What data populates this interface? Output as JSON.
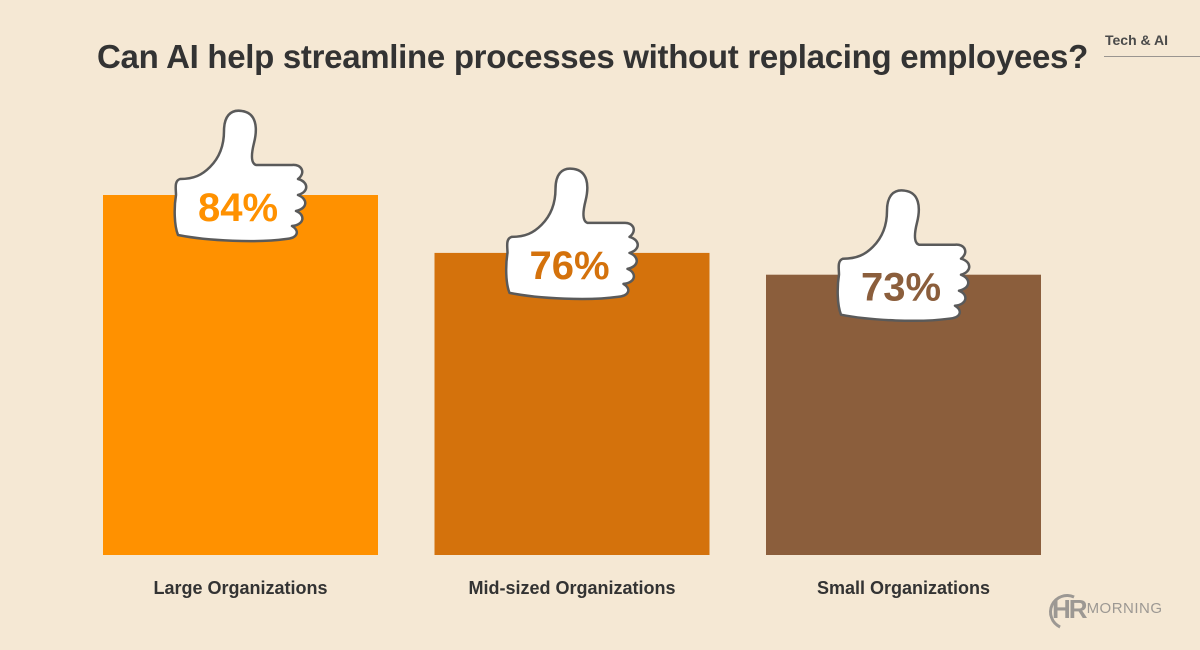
{
  "header": {
    "title": "Can AI help streamline processes without replacing employees?",
    "category_tag": "Tech & AI"
  },
  "logo": {
    "mark": "HR",
    "wordmark": "MORNING"
  },
  "colors": {
    "background": "#f5e8d4",
    "text": "#333333",
    "thumb_fill": "#ffffff",
    "thumb_stroke": "#5a5a5a"
  },
  "chart_data": {
    "type": "bar",
    "title": "Can AI help streamline processes without replacing employees?",
    "xlabel": "",
    "ylabel": "",
    "categories": [
      "Large Organizations",
      "Mid-sized Organizations",
      "Small Organizations"
    ],
    "values": [
      84,
      76,
      73
    ],
    "value_labels": [
      "84%",
      "76%",
      "73%"
    ],
    "unit": "%",
    "bar_colors": [
      "#ff9100",
      "#d4720c",
      "#8b5e3c"
    ],
    "ylim": [
      34.3,
      84
    ],
    "axis_note": "No y-axis is drawn. Bars do not start at zero: the implied baseline is about 34% (truncated axis), which visually exaggerates the differences between categories.",
    "grid": false,
    "legend": "none",
    "annotations": "Each bar carries a thumbs-up icon labelled with its percentage value"
  }
}
